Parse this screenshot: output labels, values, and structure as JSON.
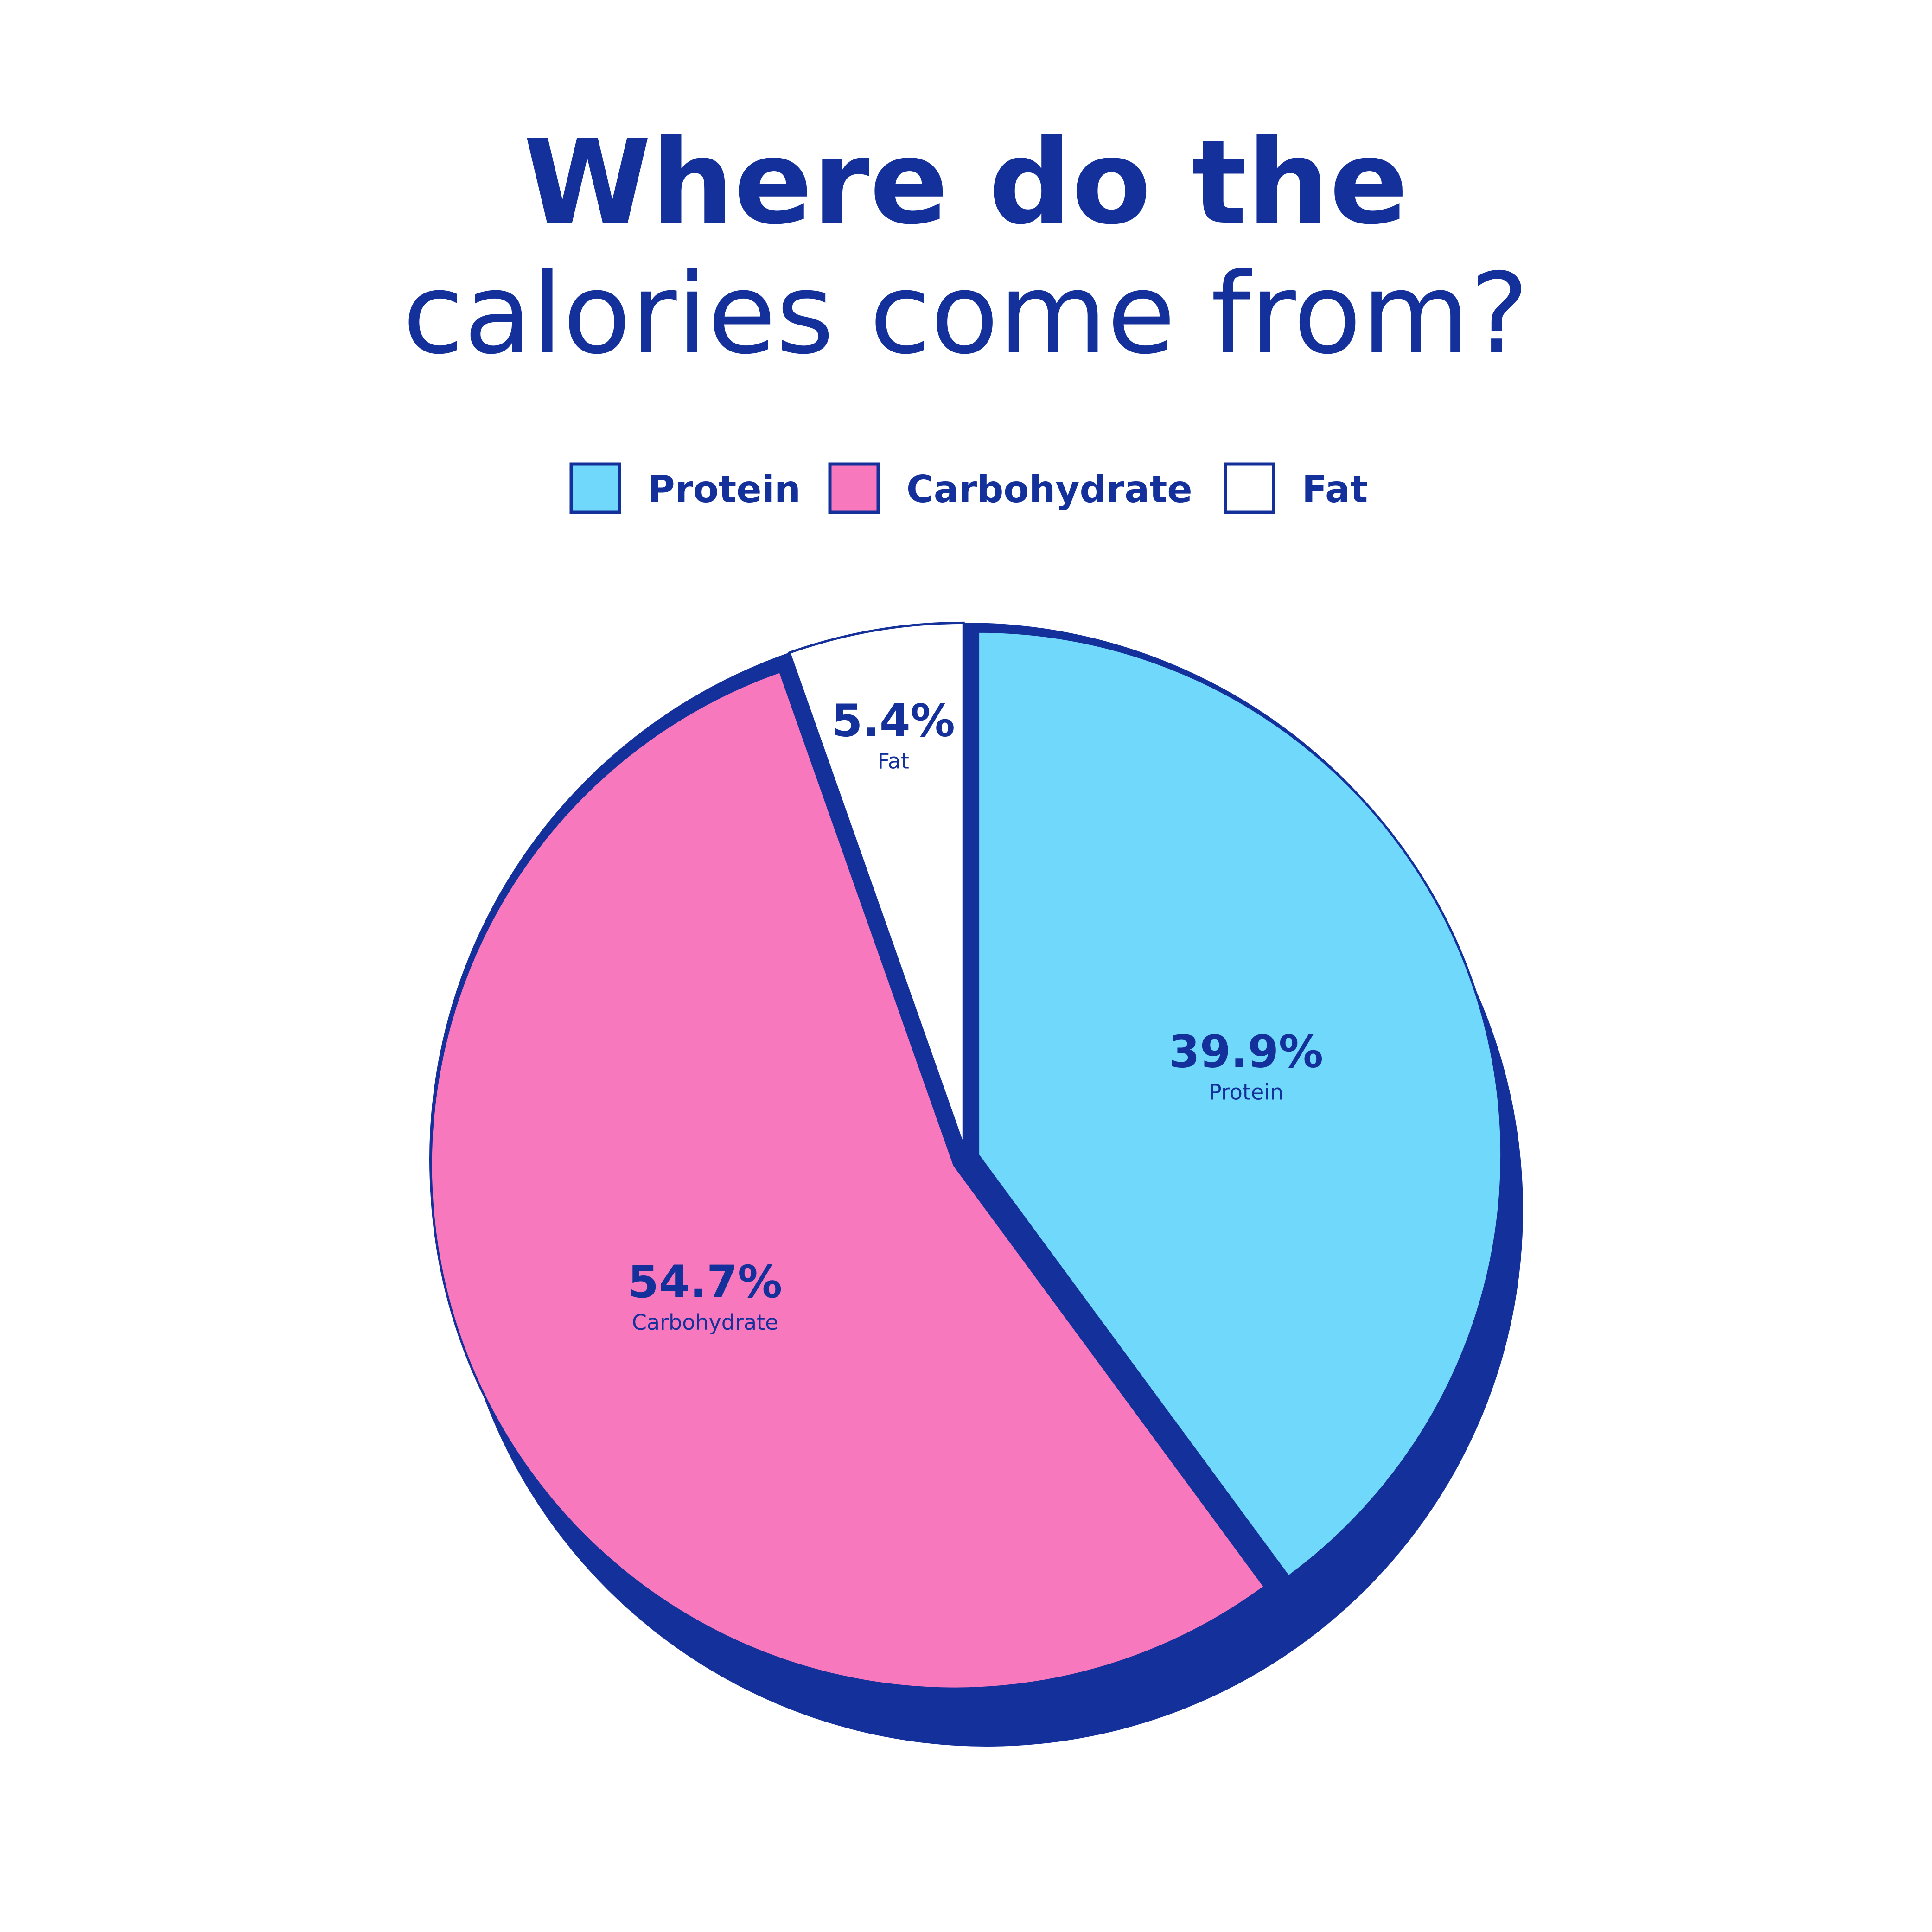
{
  "chart_data": {
    "type": "pie",
    "title": "Where do the",
    "subtitle": "calories come from?",
    "categories": [
      "Protein",
      "Carbohydrate",
      "Fat"
    ],
    "values": [
      39.9,
      54.7,
      5.4
    ],
    "value_labels": [
      "39.9%",
      "54.7%",
      "5.4%"
    ],
    "colors": [
      "#6fd8fb",
      "#f778bd",
      "#ffffff"
    ],
    "outline_color": "#14309a",
    "legend": "top"
  }
}
